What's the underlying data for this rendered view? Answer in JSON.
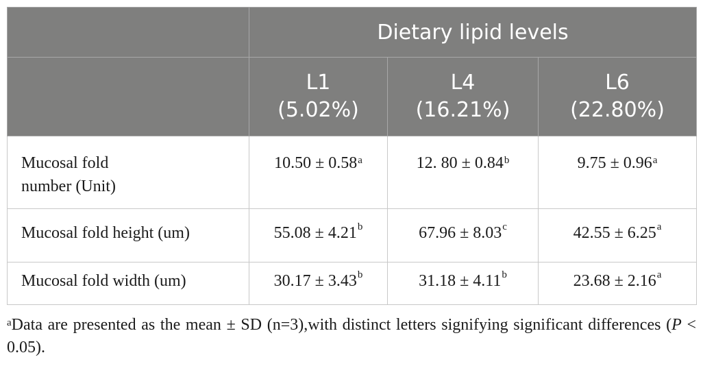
{
  "table": {
    "group_header": "Dietary lipid levels",
    "columns": [
      {
        "label": "L1",
        "sub": "(5.02%)"
      },
      {
        "label": "L4",
        "sub": "(16.21%)"
      },
      {
        "label": "L6",
        "sub": "(22.80%)"
      }
    ],
    "rows": [
      {
        "label_line1": "Mucosal fold",
        "label_line2": "number (Unit)",
        "cells": [
          {
            "value": "10.50 ± 0.58",
            "letter": "a"
          },
          {
            "value": "12. 80 ± 0.84",
            "letter": "b"
          },
          {
            "value": "9.75 ± 0.96",
            "letter": "a"
          }
        ]
      },
      {
        "label": "Mucosal fold height (um)",
        "cells": [
          {
            "value": "55.08 ± 4.21",
            "letter": "b"
          },
          {
            "value": "67.96 ± 8.03",
            "letter": "c"
          },
          {
            "value": "42.55 ± 6.25",
            "letter": "a"
          }
        ]
      },
      {
        "label": "Mucosal fold width (um)",
        "cells": [
          {
            "value": "30.17 ± 3.43",
            "letter": "b"
          },
          {
            "value": "31.18 ± 4.11",
            "letter": "b"
          },
          {
            "value": "23.68 ± 2.16",
            "letter": "a"
          }
        ]
      }
    ]
  },
  "footnote": {
    "marker": "a",
    "text_before": "Data are presented as the mean ± SD (n=3),with distinct letters signifying significant differences (",
    "italic": "P",
    "text_after": " < 0.05)."
  }
}
